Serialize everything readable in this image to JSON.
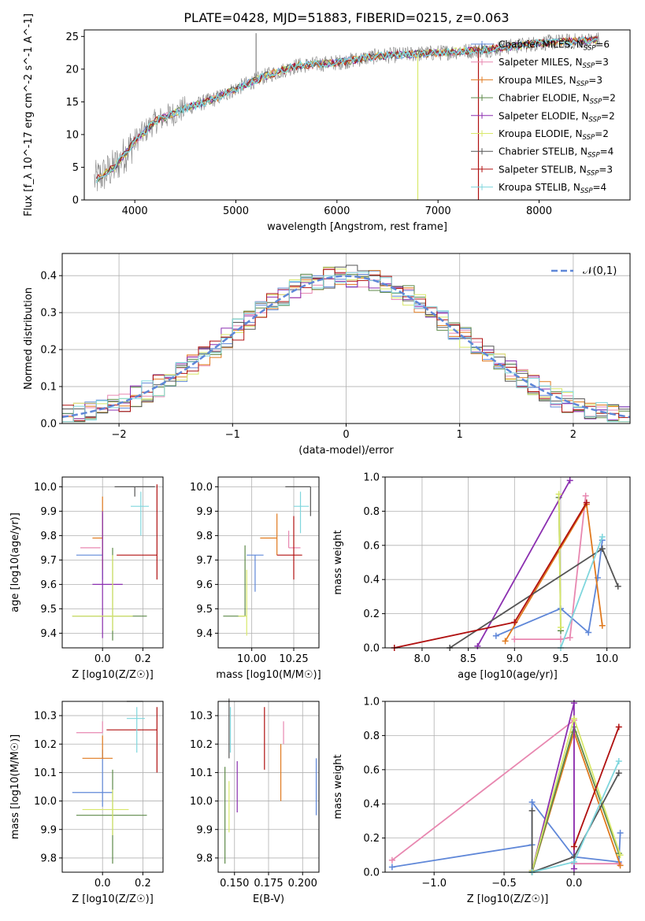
{
  "figure": {
    "title": "PLATE=0428, MJD=51883, FIBERID=0215, z=0.063",
    "colors": [
      "#5f87d8",
      "#e887b0",
      "#e07a1f",
      "#5e8a4a",
      "#8b2fb0",
      "#d8e86a",
      "#555555",
      "#b01010",
      "#7fd6dd"
    ]
  },
  "chart_data": [
    {
      "type": "line",
      "id": "spectrum",
      "title": "PLATE=0428, MJD=51883, FIBERID=0215, z=0.063",
      "xlabel": "wavelength [Angstrom, rest frame]",
      "ylabel": "Flux [f_λ 10^-17 erg cm^-2 s^-1 A^-1]",
      "xlim": [
        3500,
        8900
      ],
      "ylim": [
        0,
        26
      ],
      "xticks": [
        4000,
        5000,
        6000,
        7000,
        8000
      ],
      "yticks": [
        0,
        5,
        10,
        15,
        20,
        25
      ],
      "grid": false,
      "legend_position": "top-right",
      "continuum_x": [
        3600,
        3800,
        4000,
        4200,
        4500,
        4800,
        5000,
        5300,
        5600,
        6000,
        6400,
        7000,
        7500,
        8000,
        8600
      ],
      "continuum_y": [
        3,
        5,
        9,
        12,
        14,
        15.5,
        17,
        19,
        20.5,
        21,
        22,
        22.5,
        23,
        24,
        24.5
      ],
      "series": [
        {
          "name": "Chabrier MILES, N_SSP=6",
          "label_main": "Chabrier MILES, N",
          "label_sub": "SSP",
          "label_end": "=6"
        },
        {
          "name": "Salpeter MILES, N_SSP=3",
          "label_main": "Salpeter MILES, N",
          "label_sub": "SSP",
          "label_end": "=3"
        },
        {
          "name": "Kroupa MILES, N_SSP=3",
          "label_main": "Kroupa MILES, N",
          "label_sub": "SSP",
          "label_end": "=3"
        },
        {
          "name": "Chabrier ELODIE, N_SSP=2",
          "label_main": "Chabrier ELODIE, N",
          "label_sub": "SSP",
          "label_end": "=2"
        },
        {
          "name": "Salpeter ELODIE, N_SSP=2",
          "label_main": "Salpeter ELODIE, N",
          "label_sub": "SSP",
          "label_end": "=2"
        },
        {
          "name": "Kroupa ELODIE, N_SSP=2",
          "label_main": "Kroupa ELODIE, N",
          "label_sub": "SSP",
          "label_end": "=2"
        },
        {
          "name": "Chabrier STELIB, N_SSP=4",
          "label_main": "Chabrier STELIB, N",
          "label_sub": "SSP",
          "label_end": "=4"
        },
        {
          "name": "Salpeter STELIB, N_SSP=3",
          "label_main": "Salpeter STELIB, N",
          "label_sub": "SSP",
          "label_end": "=3"
        },
        {
          "name": "Kroupa STELIB, N_SSP=4",
          "label_main": "Kroupa STELIB, N",
          "label_sub": "SSP",
          "label_end": "=4"
        }
      ],
      "spikes": [
        {
          "x": 5200,
          "y": 25.5
        },
        {
          "x": 6800,
          "y": 0
        },
        {
          "x": 7400,
          "y": 0
        }
      ]
    },
    {
      "type": "histogram",
      "id": "residuals",
      "xlabel": "(data-model)/error",
      "ylabel": "Normed distribution",
      "xlim": [
        -2.5,
        2.5
      ],
      "ylim": [
        0,
        0.46
      ],
      "xticks": [
        -2,
        -1,
        0,
        1,
        2
      ],
      "yticks": [
        0.0,
        0.1,
        0.2,
        0.3,
        0.4
      ],
      "grid": true,
      "legend": "𝒩(0,1)",
      "legend_position": "top-right",
      "bin_width": 0.1
    },
    {
      "type": "errorbar",
      "id": "age-vs-Z",
      "xlabel": "Z [log10(Z/Z☉)]",
      "ylabel": "age [log10(age/yr)]",
      "xlim": [
        -0.2,
        0.3
      ],
      "ylim": [
        9.34,
        10.04
      ],
      "xticks": [
        0.0,
        0.2
      ],
      "yticks": [
        9.4,
        9.5,
        9.6,
        9.7,
        9.8,
        9.9,
        10.0
      ],
      "grid": true,
      "points": [
        {
          "x": 0.0,
          "xerr": [
            0.13,
            0.0
          ],
          "y": 9.72,
          "yerr": [
            0.1,
            0.17
          ]
        },
        {
          "x": -0.01,
          "xerr": [
            0.1,
            0.0
          ],
          "y": 9.75,
          "yerr": [
            0.0,
            0.0
          ]
        },
        {
          "x": 0.0,
          "xerr": [
            0.05,
            0.0
          ],
          "y": 9.79,
          "yerr": [
            0.13,
            0.17
          ]
        },
        {
          "x": 0.05,
          "xerr": [
            0.2,
            0.17
          ],
          "y": 9.47,
          "yerr": [
            0.1,
            0.28
          ]
        },
        {
          "x": 0.0,
          "xerr": [
            0.05,
            0.1
          ],
          "y": 9.6,
          "yerr": [
            0.22,
            0.3
          ]
        },
        {
          "x": 0.05,
          "xerr": [
            0.2,
            0.1
          ],
          "y": 9.47,
          "yerr": [
            0.06,
            0.25
          ]
        },
        {
          "x": 0.16,
          "xerr": [
            0.1,
            0.1
          ],
          "y": 10.0,
          "yerr": [
            0.04,
            0.0
          ]
        },
        {
          "x": 0.27,
          "xerr": [
            0.2,
            0.0
          ],
          "y": 9.72,
          "yerr": [
            0.1,
            0.29
          ]
        },
        {
          "x": 0.19,
          "xerr": [
            0.05,
            0.04
          ],
          "y": 9.92,
          "yerr": [
            0.12,
            0.06
          ]
        }
      ]
    },
    {
      "type": "errorbar",
      "id": "age-vs-mass",
      "xlabel": "mass [log10(M/M☉)]",
      "ylabel": "",
      "xlim": [
        9.8,
        10.4
      ],
      "ylim": [
        9.34,
        10.04
      ],
      "xticks": [
        10.0,
        10.25
      ],
      "yticks": [
        9.4,
        9.5,
        9.6,
        9.7,
        9.8,
        9.9,
        10.0
      ],
      "grid": true,
      "points": [
        {
          "x": 10.02,
          "xerr": [
            0.05,
            0.05
          ],
          "y": 9.72,
          "yerr": [
            0.15,
            0.0
          ]
        },
        {
          "x": 10.22,
          "xerr": [
            0.0,
            0.07
          ],
          "y": 9.75,
          "yerr": [
            0.0,
            0.07
          ]
        },
        {
          "x": 10.15,
          "xerr": [
            0.1,
            0.0
          ],
          "y": 9.79,
          "yerr": [
            0.07,
            0.1
          ]
        },
        {
          "x": 9.96,
          "xerr": [
            0.13,
            0.0
          ],
          "y": 9.47,
          "yerr": [
            0.0,
            0.29
          ]
        },
        {
          "x": 10.13,
          "xerr": [
            0.0,
            0.0
          ],
          "y": 9.6,
          "yerr": [
            0.0,
            0.0
          ]
        },
        {
          "x": 9.97,
          "xerr": [
            0.05,
            0.0
          ],
          "y": 9.47,
          "yerr": [
            0.08,
            0.19
          ]
        },
        {
          "x": 10.35,
          "xerr": [
            0.15,
            0.0
          ],
          "y": 10.0,
          "yerr": [
            0.12,
            0.0
          ]
        },
        {
          "x": 10.25,
          "xerr": [
            0.1,
            0.05
          ],
          "y": 9.72,
          "yerr": [
            0.1,
            0.16
          ]
        },
        {
          "x": 10.29,
          "xerr": [
            0.04,
            0.05
          ],
          "y": 9.92,
          "yerr": [
            0.11,
            0.06
          ]
        }
      ]
    },
    {
      "type": "line",
      "id": "massweight-vs-age",
      "xlabel": "age [log10(age/yr)]",
      "ylabel": "mass weight",
      "xlim": [
        7.6,
        10.25
      ],
      "ylim": [
        0,
        1.0
      ],
      "xticks": [
        8.0,
        8.5,
        9.0,
        9.5,
        10.0
      ],
      "yticks": [
        0.0,
        0.2,
        0.4,
        0.6,
        0.8,
        1.0
      ],
      "grid": true,
      "series": [
        {
          "x": [
            8.8,
            9.5,
            9.8,
            9.9,
            9.95
          ],
          "y": [
            0.07,
            0.23,
            0.09,
            0.41,
            0.63
          ]
        },
        {
          "x": [
            9.0,
            9.5,
            9.6,
            9.77
          ],
          "y": [
            0.05,
            0.05,
            0.06,
            0.89
          ]
        },
        {
          "x": [
            8.9,
            9.78,
            9.95
          ],
          "y": [
            0.04,
            0.84,
            0.13
          ]
        },
        {
          "x": [
            9.48,
            9.5
          ],
          "y": [
            0.88,
            0.1
          ]
        },
        {
          "x": [
            8.6,
            9.6
          ],
          "y": [
            0.01,
            0.98
          ]
        },
        {
          "x": [
            9.48,
            9.5
          ],
          "y": [
            0.9,
            0.12
          ]
        },
        {
          "x": [
            8.3,
            9.95,
            10.12
          ],
          "y": [
            0.0,
            0.58,
            0.36
          ]
        },
        {
          "x": [
            7.7,
            9.0,
            9.78
          ],
          "y": [
            0.0,
            0.15,
            0.85
          ]
        },
        {
          "x": [
            9.5,
            9.95
          ],
          "y": [
            0.0,
            0.65
          ]
        }
      ]
    },
    {
      "type": "errorbar",
      "id": "mass-vs-Z",
      "xlabel": "Z [log10(Z/Z☉)]",
      "ylabel": "mass [log10(M/M☉)]",
      "xlim": [
        -0.2,
        0.3
      ],
      "ylim": [
        9.75,
        10.35
      ],
      "xticks": [
        0.0,
        0.2
      ],
      "yticks": [
        9.8,
        9.9,
        10.0,
        10.1,
        10.2,
        10.3
      ],
      "grid": true,
      "points": [
        {
          "x": 0.0,
          "xerr": [
            0.15,
            0.05
          ],
          "y": 10.03,
          "yerr": [
            0.05,
            0.15
          ]
        },
        {
          "x": 0.0,
          "xerr": [
            0.13,
            0.0
          ],
          "y": 10.24,
          "yerr": [
            0.0,
            0.04
          ]
        },
        {
          "x": 0.0,
          "xerr": [
            0.1,
            0.05
          ],
          "y": 10.15,
          "yerr": [
            0.0,
            0.08
          ]
        },
        {
          "x": 0.05,
          "xerr": [
            0.18,
            0.17
          ],
          "y": 9.95,
          "yerr": [
            0.17,
            0.16
          ]
        },
        {
          "x": 0.0,
          "xerr": [
            0.0,
            0.0
          ],
          "y": 10.16,
          "yerr": [
            0.0,
            0.0
          ]
        },
        {
          "x": 0.05,
          "xerr": [
            0.15,
            0.08
          ],
          "y": 9.97,
          "yerr": [
            0.09,
            0.07
          ]
        },
        {
          "x": 0.2,
          "xerr": [
            0.08,
            0.0
          ],
          "y": 10.35,
          "yerr": [
            0.0,
            0.0
          ]
        },
        {
          "x": 0.27,
          "xerr": [
            0.25,
            0.0
          ],
          "y": 10.25,
          "yerr": [
            0.15,
            0.08
          ]
        },
        {
          "x": 0.17,
          "xerr": [
            0.05,
            0.04
          ],
          "y": 10.29,
          "yerr": [
            0.12,
            0.04
          ]
        }
      ]
    },
    {
      "type": "errorbar",
      "id": "mass-vs-EBV",
      "xlabel": "E(B-V)",
      "ylabel": "",
      "xlim": [
        0.138,
        0.212
      ],
      "ylim": [
        9.75,
        10.35
      ],
      "xticks": [
        0.15,
        0.175,
        0.2
      ],
      "yticks": [
        9.8,
        9.9,
        10.0,
        10.1,
        10.2,
        10.3
      ],
      "grid": true,
      "points": [
        {
          "x": 0.21,
          "y": 10.05,
          "yerr": [
            0.1,
            0.1
          ]
        },
        {
          "x": 0.186,
          "y": 10.2,
          "yerr": [
            0.0,
            0.08
          ]
        },
        {
          "x": 0.184,
          "y": 10.1,
          "yerr": [
            0.1,
            0.1
          ]
        },
        {
          "x": 0.143,
          "y": 9.95,
          "yerr": [
            0.17,
            0.17
          ]
        },
        {
          "x": 0.152,
          "y": 10.05,
          "yerr": [
            0.09,
            0.09
          ]
        },
        {
          "x": 0.146,
          "y": 9.98,
          "yerr": [
            0.09,
            0.09
          ]
        },
        {
          "x": 0.146,
          "y": 10.25,
          "yerr": [
            0.1,
            0.11
          ]
        },
        {
          "x": 0.172,
          "y": 10.21,
          "yerr": [
            0.1,
            0.12
          ]
        },
        {
          "x": 0.147,
          "y": 10.25,
          "yerr": [
            0.08,
            0.08
          ]
        }
      ]
    },
    {
      "type": "line",
      "id": "massweight-vs-Z",
      "xlabel": "Z [log10(Z/Z☉)]",
      "ylabel": "mass weight",
      "xlim": [
        -1.35,
        0.4
      ],
      "ylim": [
        0,
        1.0
      ],
      "xticks": [
        -1.0,
        -0.5,
        0.0
      ],
      "yticks": [
        0.0,
        0.2,
        0.4,
        0.6,
        0.8,
        1.0
      ],
      "grid": true,
      "series": [
        {
          "x": [
            -1.3,
            -0.3,
            -0.3,
            0.0,
            0.32,
            0.33
          ],
          "y": [
            0.03,
            0.16,
            0.41,
            0.09,
            0.06,
            0.23
          ]
        },
        {
          "x": [
            -1.3,
            0.0,
            0.0,
            0.32
          ],
          "y": [
            0.07,
            0.89,
            0.05,
            0.05
          ]
        },
        {
          "x": [
            -0.3,
            0.0,
            0.33
          ],
          "y": [
            0.0,
            0.82,
            0.04
          ]
        },
        {
          "x": [
            -0.3,
            0.0,
            0.32
          ],
          "y": [
            0.0,
            0.85,
            0.11
          ]
        },
        {
          "x": [
            -0.3,
            0.0,
            0.0
          ],
          "y": [
            0.01,
            0.99,
            0.02
          ]
        },
        {
          "x": [
            -0.3,
            0.0,
            0.33
          ],
          "y": [
            0.01,
            0.9,
            0.1
          ]
        },
        {
          "x": [
            -0.3,
            -0.3,
            0.0,
            0.32
          ],
          "y": [
            0.36,
            0.0,
            0.09,
            0.58
          ]
        },
        {
          "x": [
            0.0,
            0.32
          ],
          "y": [
            0.15,
            0.85
          ]
        },
        {
          "x": [
            -0.3,
            0.0,
            0.32
          ],
          "y": [
            0.0,
            0.06,
            0.65
          ]
        }
      ]
    }
  ]
}
